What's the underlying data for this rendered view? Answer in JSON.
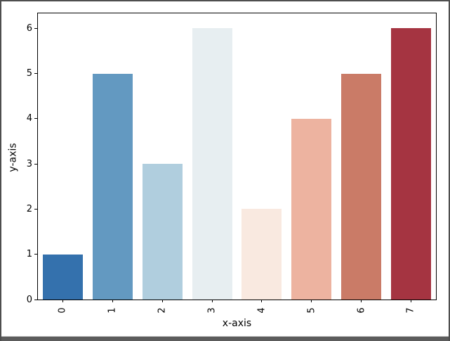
{
  "window": {
    "background": "#ffffff",
    "frame_color": "#5c5c5c",
    "spine_color": "#000000"
  },
  "chart_data": {
    "type": "bar",
    "title": "",
    "xlabel": "x-axis",
    "ylabel": "y-axis",
    "categories": [
      "0",
      "1",
      "2",
      "3",
      "4",
      "5",
      "6",
      "7"
    ],
    "values": [
      1,
      5,
      3,
      6,
      2,
      4,
      5,
      6
    ],
    "bar_colors": [
      "#3471ad",
      "#6399c1",
      "#b0cede",
      "#e7eef1",
      "#f9e9e0",
      "#edb3a0",
      "#ca7b67",
      "#a53441"
    ],
    "y_ticks": [
      0,
      1,
      2,
      3,
      4,
      5,
      6
    ],
    "ylim": [
      0,
      6.33
    ],
    "x_tick_rotation": 90,
    "grid": false,
    "legend": null,
    "bar_width_fraction": 0.8
  }
}
